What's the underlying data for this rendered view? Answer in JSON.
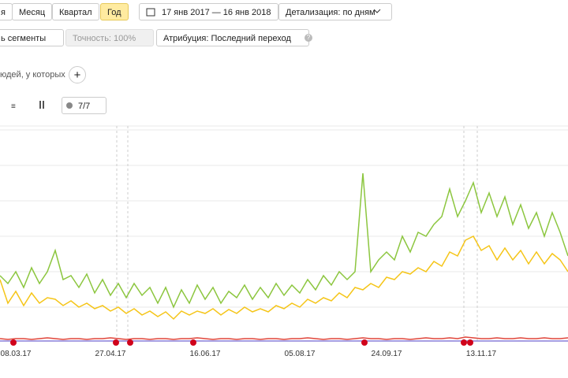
{
  "toolbar": {
    "periods": [
      "я",
      "Месяц",
      "Квартал",
      "Год"
    ],
    "active_period": 3,
    "date_range": "17 янв 2017 — 16 янв 2018",
    "detail": "Детализация: по дням",
    "segments": "ь сегменты",
    "accuracy": "Точность: 100%",
    "attribution": "Атрибуция: Последний переход",
    "help": "?",
    "filter": "юдей, у которых",
    "add": "+",
    "goals": "7/7"
  },
  "chart_data": {
    "type": "line",
    "ylim": [
      0,
      270
    ],
    "categories": [
      null,
      null,
      "08.03.17",
      null,
      null,
      null,
      null,
      null,
      null,
      null,
      null,
      null,
      null,
      null,
      "27.04.17",
      null,
      null,
      null,
      null,
      null,
      null,
      null,
      null,
      null,
      null,
      null,
      "16.06.17",
      null,
      null,
      null,
      null,
      null,
      null,
      null,
      null,
      null,
      null,
      null,
      "05.08.17",
      null,
      null,
      null,
      null,
      null,
      null,
      null,
      null,
      null,
      null,
      "24.09.17",
      null,
      null,
      null,
      null,
      null,
      null,
      null,
      null,
      null,
      null,
      null,
      "13.11.17",
      null,
      null,
      null,
      null,
      null,
      null,
      null,
      null,
      null,
      null,
      null
    ],
    "series": [
      {
        "color": "#8cc63f",
        "values": [
          85,
          75,
          90,
          70,
          95,
          75,
          90,
          117,
          80,
          85,
          70,
          87,
          63,
          80,
          60,
          75,
          57,
          75,
          60,
          70,
          50,
          70,
          45,
          67,
          50,
          73,
          55,
          70,
          50,
          65,
          57,
          73,
          55,
          70,
          57,
          75,
          60,
          73,
          63,
          80,
          67,
          85,
          73,
          90,
          80,
          90,
          215,
          90,
          105,
          115,
          105,
          135,
          115,
          140,
          135,
          150,
          160,
          195,
          160,
          180,
          203,
          165,
          190,
          160,
          185,
          150,
          175,
          145,
          165,
          135,
          165,
          140,
          110
        ]
      },
      {
        "color": "#f5c518",
        "values": [
          80,
          50,
          65,
          47,
          63,
          50,
          57,
          55,
          47,
          53,
          45,
          50,
          43,
          47,
          40,
          45,
          37,
          43,
          35,
          40,
          33,
          39,
          30,
          40,
          35,
          40,
          37,
          43,
          35,
          42,
          37,
          45,
          39,
          43,
          39,
          47,
          43,
          50,
          45,
          55,
          50,
          57,
          53,
          63,
          57,
          70,
          67,
          75,
          70,
          83,
          80,
          90,
          87,
          95,
          90,
          103,
          97,
          115,
          110,
          130,
          135,
          117,
          123,
          105,
          120,
          105,
          117,
          100,
          115,
          100,
          113,
          105,
          90
        ]
      },
      {
        "color": "#e0453a",
        "values": [
          5,
          4,
          5,
          5,
          4,
          5,
          6,
          5,
          4,
          5,
          5,
          4,
          5,
          5,
          6,
          5,
          4,
          5,
          5,
          4,
          5,
          5,
          4,
          5,
          5,
          6,
          5,
          4,
          5,
          5,
          4,
          5,
          5,
          4,
          5,
          5,
          4,
          5,
          5,
          6,
          5,
          4,
          5,
          5,
          4,
          5,
          6,
          5,
          5,
          4,
          5,
          5,
          4,
          5,
          6,
          5,
          5,
          6,
          5,
          7,
          6,
          5,
          5,
          6,
          5,
          5,
          6,
          5,
          5,
          6,
          5,
          5,
          6
        ]
      },
      {
        "color": "#8a7fd8",
        "values": [
          2,
          2,
          2,
          2,
          2,
          2,
          2,
          2,
          2,
          2,
          2,
          2,
          2,
          2,
          2,
          2,
          2,
          2,
          2,
          2,
          2,
          2,
          2,
          2,
          2,
          2,
          2,
          2,
          2,
          2,
          2,
          2,
          2,
          2,
          2,
          2,
          2,
          2,
          2,
          2,
          2,
          2,
          2,
          2,
          2,
          2,
          2,
          2,
          2,
          2,
          2,
          2,
          2,
          2,
          2,
          2,
          2,
          2,
          2,
          2,
          2,
          2,
          2,
          2,
          2,
          2,
          2,
          2,
          2,
          2,
          2,
          2,
          2
        ]
      }
    ]
  }
}
